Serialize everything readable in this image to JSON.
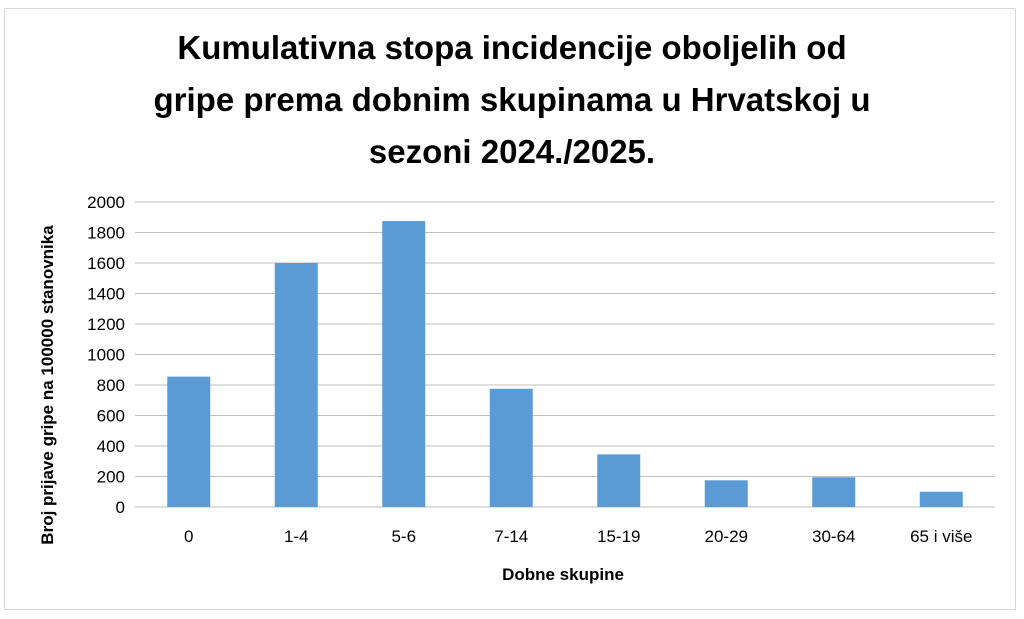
{
  "chart_data": {
    "type": "bar",
    "title_lines": [
      "Kumulativna stopa incidencije oboljelih od",
      "gripe prema dobnim skupinama u Hrvatskoj u",
      "sezoni 2024./2025."
    ],
    "xlabel": "Dobne skupine",
    "ylabel": "Broj prijave gripe na 100000 stanovnika",
    "categories": [
      "0",
      "1-4",
      "5-6",
      "7-14",
      "15-19",
      "20-29",
      "30-64",
      "65 i više"
    ],
    "values": [
      855,
      1600,
      1875,
      775,
      345,
      175,
      195,
      100
    ],
    "ylim": [
      0,
      2000
    ],
    "yticks": [
      "0",
      "200",
      "400",
      "600",
      "800",
      "1000",
      "1200",
      "1400",
      "1600",
      "1800",
      "2000"
    ],
    "grid": true,
    "legend": "none",
    "bar_color": "#5b9bd5",
    "grid_color": "#bfbfbf"
  }
}
